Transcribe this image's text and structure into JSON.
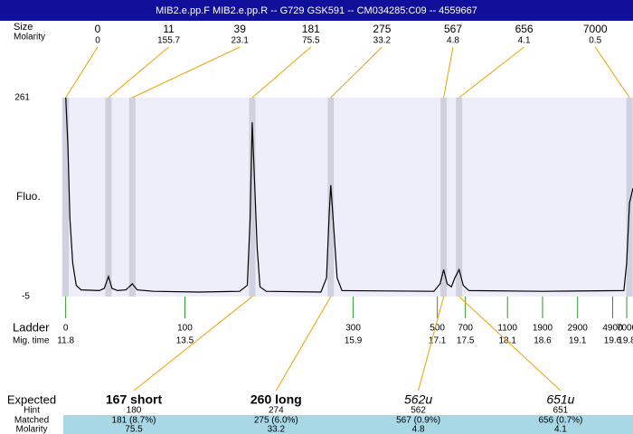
{
  "header": {
    "title": "MIB2.e.pp.F  MIB2.e.pp.R -- G729 GSK591 -- CM034285:C09 -- 4559667"
  },
  "peaks": {
    "size_label": "Size",
    "molarity_label": "Molarity",
    "sizes": [
      0,
      11,
      39,
      181,
      275,
      567,
      656,
      7000
    ],
    "molarities": [
      0,
      155.7,
      23.1,
      75.5,
      33.2,
      4.8,
      4.1,
      0.5
    ],
    "mig_times": [
      11.8,
      12.41,
      12.75,
      14.46,
      15.58,
      17.19,
      17.41,
      19.84
    ]
  },
  "plot": {
    "ylabel": "Fluo.",
    "ylim": [
      -5,
      261
    ],
    "yticks": [
      261,
      -5
    ],
    "xlim": [
      11.74,
      19.89
    ],
    "color": "#000000",
    "trace": {
      "x": [
        11.8,
        11.83,
        11.86,
        11.9,
        11.95,
        12.02,
        12.28,
        12.35,
        12.41,
        12.46,
        12.54,
        12.66,
        12.75,
        12.82,
        13.05,
        13.7,
        14.28,
        14.39,
        14.43,
        14.46,
        14.48,
        14.53,
        14.57,
        14.66,
        15.44,
        15.52,
        15.56,
        15.58,
        15.62,
        15.67,
        15.74,
        17.05,
        17.14,
        17.19,
        17.24,
        17.3,
        17.35,
        17.41,
        17.47,
        17.55,
        18.6,
        19.76,
        19.8,
        19.84,
        19.89
      ],
      "y": [
        261,
        200,
        100,
        40,
        10,
        4,
        3,
        6,
        22,
        6,
        3,
        4,
        12,
        4,
        2,
        1,
        2,
        10,
        100,
        228,
        180,
        60,
        8,
        2,
        1,
        20,
        110,
        144,
        90,
        20,
        3,
        2,
        12,
        31,
        12,
        8,
        20,
        31,
        10,
        3,
        2,
        3,
        40,
        120,
        140
      ]
    }
  },
  "ladder": {
    "label": "Ladder",
    "time_label": "Mig. time",
    "sizes": [
      0,
      100,
      300,
      500,
      700,
      1100,
      1900,
      2900,
      4900,
      7000
    ],
    "mig_times": [
      11.8,
      13.5,
      15.9,
      17.1,
      17.5,
      18.1,
      18.6,
      19.1,
      19.6,
      19.8
    ]
  },
  "expected": {
    "row_labels": [
      "Expected",
      "Hint",
      "Matched",
      "Molarity"
    ],
    "columns": [
      {
        "name": "167 short",
        "hint": 180,
        "matched": "181 (8.7%)",
        "molarity": 75.5
      },
      {
        "name": "260 long",
        "hint": 274,
        "matched": "275 (6.0%)",
        "molarity": 33.2
      },
      {
        "name": "562u",
        "hint": 562,
        "matched": "567 (0.9%)",
        "molarity": 4.8
      },
      {
        "name": "651u",
        "hint": 651,
        "matched": "656 (0.7%)",
        "molarity": 4.1
      }
    ]
  }
}
